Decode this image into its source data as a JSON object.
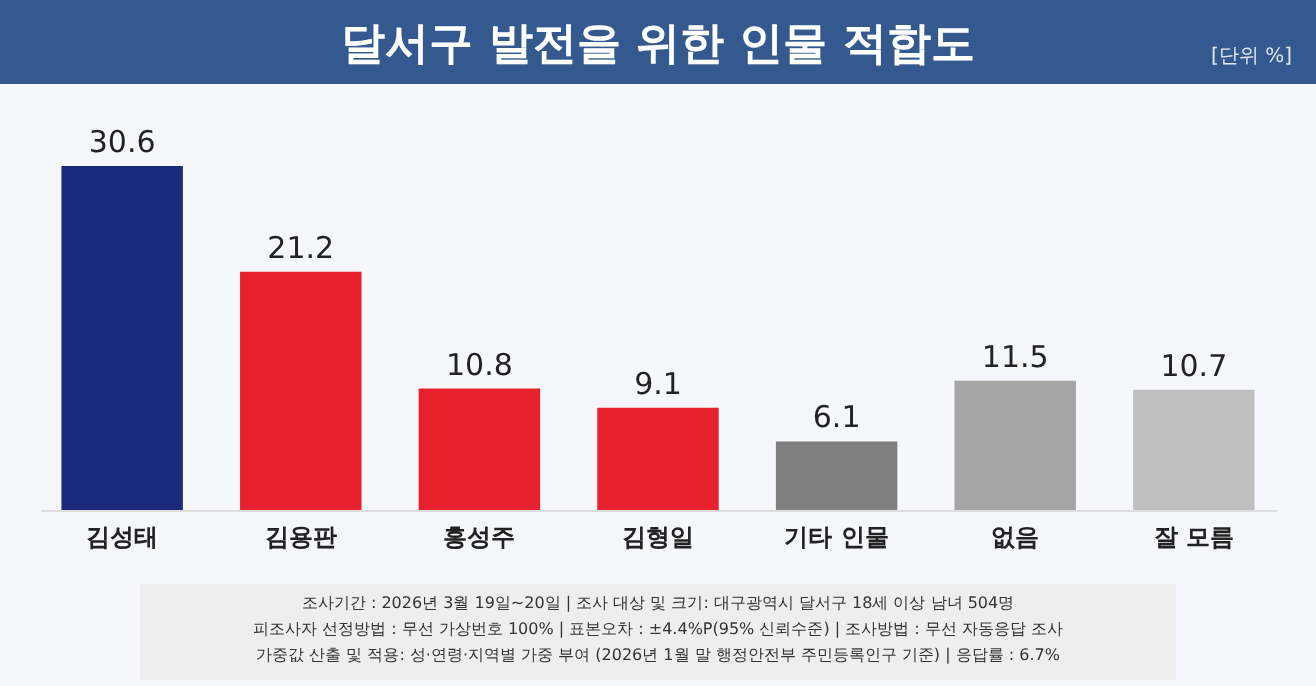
{
  "chart_data": {
    "type": "bar",
    "title": "달서구 발전을 위한 인물 적합도",
    "subtitle": "[단위 %]",
    "categories": [
      "김성태",
      "김용판",
      "홍성주",
      "김형일",
      "기타 인물",
      "없음",
      "잘 모름"
    ],
    "values": [
      30.6,
      21.2,
      10.8,
      9.1,
      6.1,
      11.5,
      10.7
    ],
    "colors": [
      "#1c2a7e",
      "#e8212e",
      "#e8212e",
      "#e8212e",
      "#7f7f7f",
      "#a5a5a5",
      "#bfbfbf"
    ],
    "data_labels": true,
    "tick_labels": "x",
    "grid": false,
    "annotations": [
      "조사기간 : 2026년 3월 19일~20일 | 조사 대상 및 크기: 대구광역시 달서구 18세 이상 남녀 504명",
      "피조사자 선정방법 : 무선 가상번호 100% | 표본오차 : ±4.4%P(95% 신뢰수준) | 조사방법 : 무선 자동응답 조사",
      "가중값 산출 및 적용: 성·연령·지역별 가중 부여 (2026년 1월 말 행정안전부 주민등록인구 기준) | 응답률 : 6.7%"
    ]
  }
}
